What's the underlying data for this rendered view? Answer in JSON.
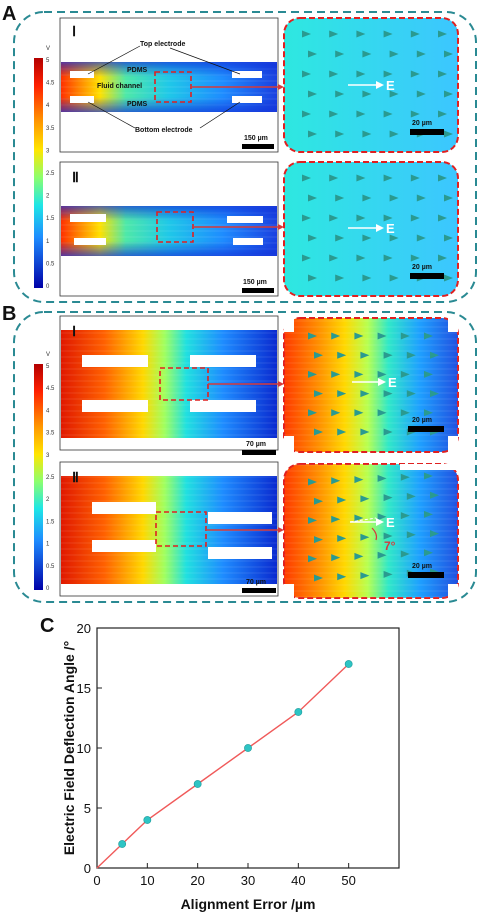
{
  "panels": [
    {
      "letter": "A",
      "subpanels": [
        {
          "numeral": "Ⅰ",
          "scale_main": "150 µm",
          "scale_zoom": "20 µm",
          "field": "E",
          "labels": {
            "top": "Top electrode",
            "bottom": "Bottom electrode",
            "pdms1": "PDMS",
            "pdms2": "PDMS",
            "fluid": "Fluid channel"
          }
        },
        {
          "numeral": "Ⅱ",
          "scale_main": "150 µm",
          "scale_zoom": "20 µm",
          "field": "E"
        }
      ],
      "colorbar": {
        "unit": "V",
        "ticks": [
          "5",
          "4.5",
          "4",
          "3.5",
          "3",
          "2.5",
          "2",
          "1.5",
          "1",
          "0.5",
          "0"
        ]
      }
    },
    {
      "letter": "B",
      "subpanels": [
        {
          "numeral": "Ⅰ",
          "scale_main": "70 µm",
          "scale_zoom": "20 µm",
          "field": "E"
        },
        {
          "numeral": "Ⅱ",
          "scale_main": "70 µm",
          "scale_zoom": "20 µm",
          "field": "E",
          "angle": "7°"
        }
      ],
      "colorbar": {
        "unit": "V",
        "ticks": [
          "5",
          "4.5",
          "4",
          "3.5",
          "3",
          "2.5",
          "2",
          "1.5",
          "1",
          "0.5",
          "0"
        ]
      }
    },
    {
      "letter": "C"
    }
  ],
  "chart_data": {
    "type": "line",
    "xlabel": "Alignment Error /µm",
    "ylabel": "Electric Field Deflection Angle /°",
    "xlim": [
      0,
      60
    ],
    "ylim": [
      0,
      20
    ],
    "xticks": [
      0,
      10,
      20,
      30,
      40,
      50
    ],
    "yticks": [
      0,
      5,
      10,
      15,
      20
    ],
    "series": [
      {
        "x": [
          0,
          5,
          10,
          20,
          30,
          40,
          50
        ],
        "y": [
          0,
          2,
          4,
          7,
          10,
          13,
          17
        ],
        "line_color": "#f05a5a",
        "marker_color": "#2ec4c4"
      }
    ],
    "grid": false
  },
  "colors": {
    "frame": "#2a8a93",
    "zoom_border": "#e02020",
    "arrow": "#d63a3a"
  }
}
